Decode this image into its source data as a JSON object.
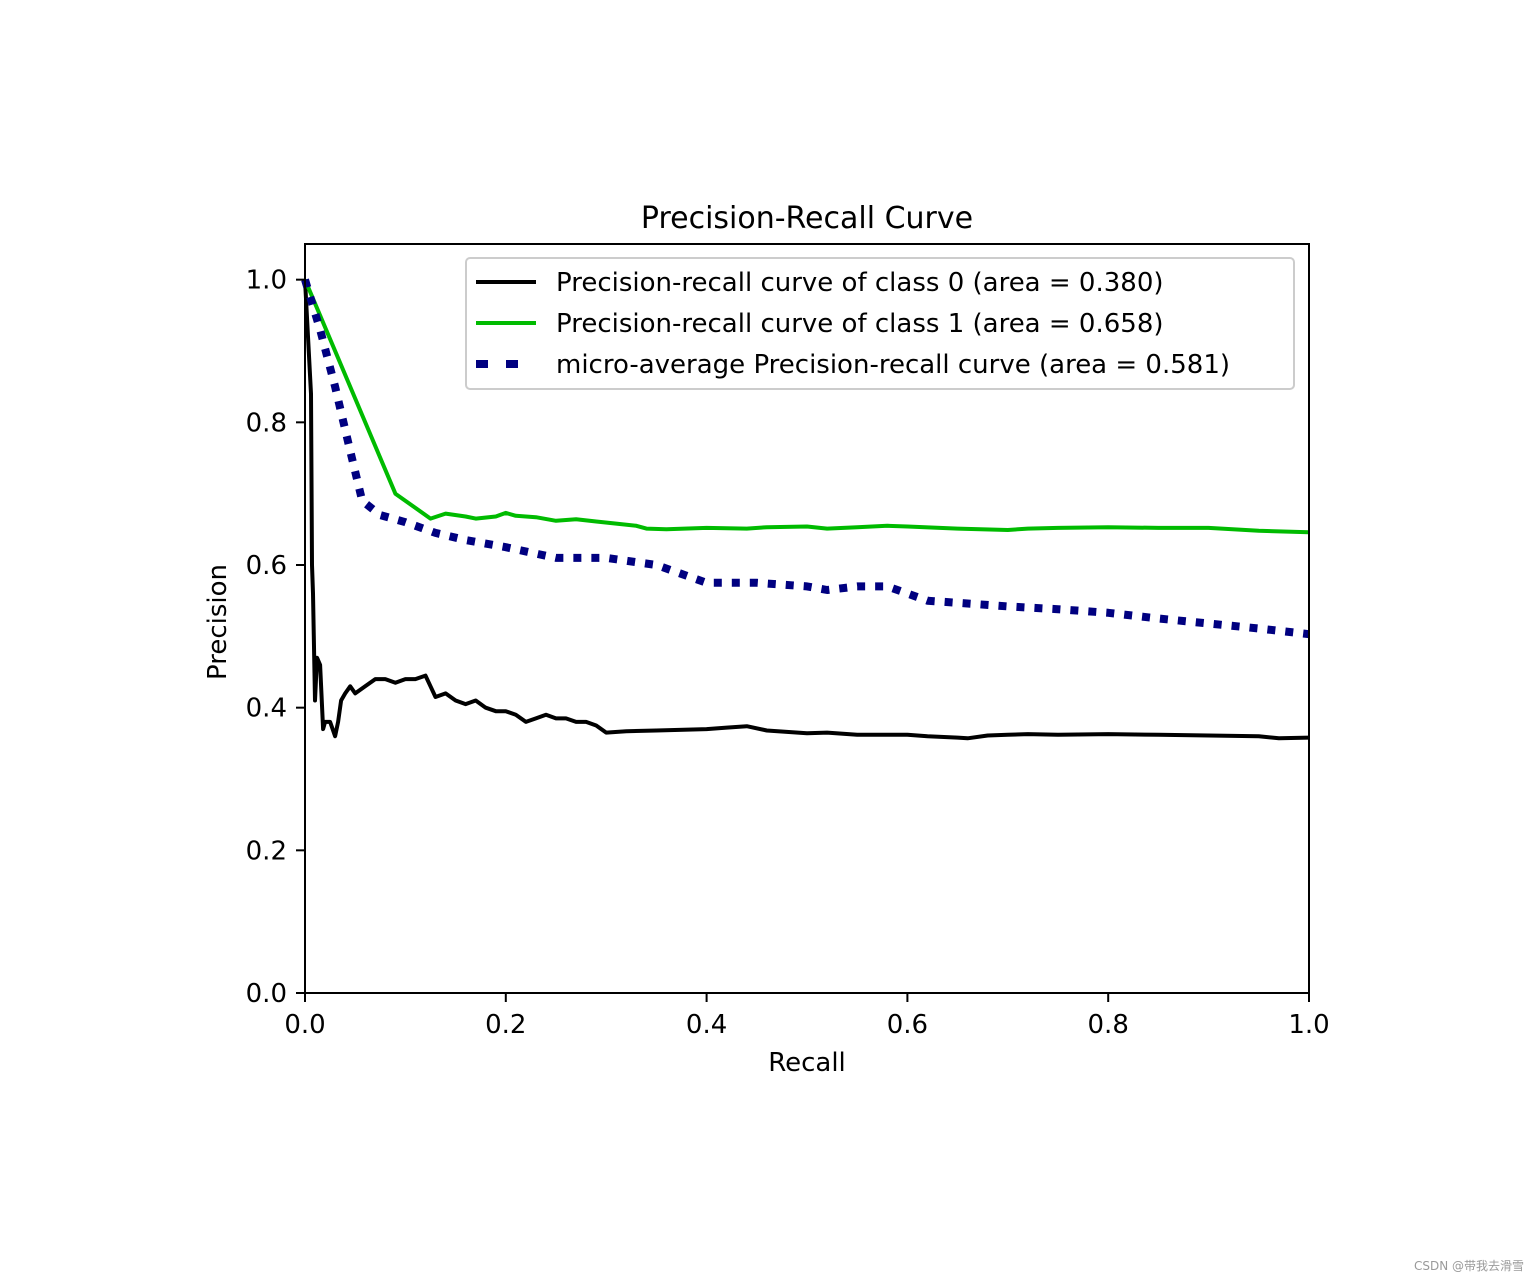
{
  "chart_data": {
    "type": "line",
    "title": "Precision-Recall Curve",
    "xlabel": "Recall",
    "ylabel": "Precision",
    "xlim": [
      0.0,
      1.0
    ],
    "ylim": [
      0.0,
      1.05
    ],
    "xticks": [
      "0.0",
      "0.2",
      "0.4",
      "0.6",
      "0.8",
      "1.0"
    ],
    "xtick_values": [
      0.0,
      0.2,
      0.4,
      0.6,
      0.8,
      1.0
    ],
    "yticks": [
      "0.0",
      "0.2",
      "0.4",
      "0.6",
      "0.8",
      "1.0"
    ],
    "ytick_values": [
      0.0,
      0.2,
      0.4,
      0.6,
      0.8,
      1.0
    ],
    "grid": false,
    "legend_position": "top-right",
    "series": [
      {
        "name": "Precision-recall curve of class 0 (area = 0.380)",
        "color": "#000000",
        "style": "solid",
        "x": [
          0.0,
          0.003,
          0.006,
          0.007,
          0.008,
          0.01,
          0.012,
          0.015,
          0.018,
          0.02,
          0.025,
          0.03,
          0.033,
          0.036,
          0.04,
          0.045,
          0.05,
          0.06,
          0.07,
          0.08,
          0.09,
          0.1,
          0.11,
          0.12,
          0.125,
          0.13,
          0.14,
          0.15,
          0.16,
          0.17,
          0.18,
          0.19,
          0.2,
          0.21,
          0.22,
          0.23,
          0.24,
          0.25,
          0.26,
          0.27,
          0.28,
          0.29,
          0.3,
          0.32,
          0.35,
          0.4,
          0.42,
          0.44,
          0.46,
          0.48,
          0.5,
          0.52,
          0.55,
          0.58,
          0.6,
          0.62,
          0.65,
          0.66,
          0.68,
          0.7,
          0.72,
          0.75,
          0.8,
          0.85,
          0.9,
          0.95,
          0.97,
          1.0
        ],
        "y": [
          1.0,
          0.92,
          0.84,
          0.6,
          0.56,
          0.41,
          0.47,
          0.46,
          0.37,
          0.38,
          0.38,
          0.36,
          0.38,
          0.41,
          0.42,
          0.43,
          0.42,
          0.43,
          0.44,
          0.44,
          0.435,
          0.44,
          0.44,
          0.445,
          0.43,
          0.415,
          0.42,
          0.41,
          0.405,
          0.41,
          0.4,
          0.395,
          0.395,
          0.39,
          0.38,
          0.385,
          0.39,
          0.385,
          0.385,
          0.38,
          0.38,
          0.375,
          0.365,
          0.367,
          0.368,
          0.37,
          0.372,
          0.374,
          0.368,
          0.366,
          0.364,
          0.365,
          0.362,
          0.362,
          0.362,
          0.36,
          0.358,
          0.357,
          0.361,
          0.362,
          0.363,
          0.362,
          0.363,
          0.362,
          0.361,
          0.36,
          0.357,
          0.358
        ]
      },
      {
        "name": "Precision-recall curve of class 1 (area = 0.658)",
        "color": "#00bb00",
        "style": "solid",
        "x": [
          0.0,
          0.09,
          0.125,
          0.14,
          0.16,
          0.17,
          0.19,
          0.2,
          0.21,
          0.23,
          0.25,
          0.27,
          0.29,
          0.31,
          0.33,
          0.34,
          0.36,
          0.4,
          0.44,
          0.46,
          0.5,
          0.52,
          0.55,
          0.58,
          0.6,
          0.65,
          0.7,
          0.72,
          0.75,
          0.8,
          0.85,
          0.9,
          0.95,
          1.0
        ],
        "y": [
          1.0,
          0.7,
          0.665,
          0.672,
          0.668,
          0.665,
          0.668,
          0.673,
          0.669,
          0.667,
          0.662,
          0.664,
          0.661,
          0.658,
          0.655,
          0.651,
          0.65,
          0.652,
          0.651,
          0.653,
          0.654,
          0.651,
          0.653,
          0.655,
          0.654,
          0.651,
          0.649,
          0.651,
          0.652,
          0.653,
          0.652,
          0.652,
          0.648,
          0.646
        ]
      },
      {
        "name": "micro-average Precision-recall curve (area = 0.581)",
        "color": "#000080",
        "style": "dotted",
        "x": [
          0.0,
          0.015,
          0.03,
          0.045,
          0.057,
          0.075,
          0.1,
          0.13,
          0.16,
          0.2,
          0.25,
          0.3,
          0.35,
          0.4,
          0.45,
          0.5,
          0.52,
          0.55,
          0.58,
          0.6,
          0.62,
          0.65,
          0.7,
          0.75,
          0.8,
          0.85,
          0.9,
          0.95,
          1.0
        ],
        "y": [
          1.0,
          0.93,
          0.85,
          0.76,
          0.69,
          0.67,
          0.66,
          0.645,
          0.635,
          0.625,
          0.61,
          0.61,
          0.6,
          0.575,
          0.575,
          0.57,
          0.565,
          0.57,
          0.57,
          0.56,
          0.55,
          0.547,
          0.542,
          0.538,
          0.533,
          0.525,
          0.518,
          0.511,
          0.503
        ]
      }
    ]
  },
  "watermark": "CSDN @带我去滑雪"
}
